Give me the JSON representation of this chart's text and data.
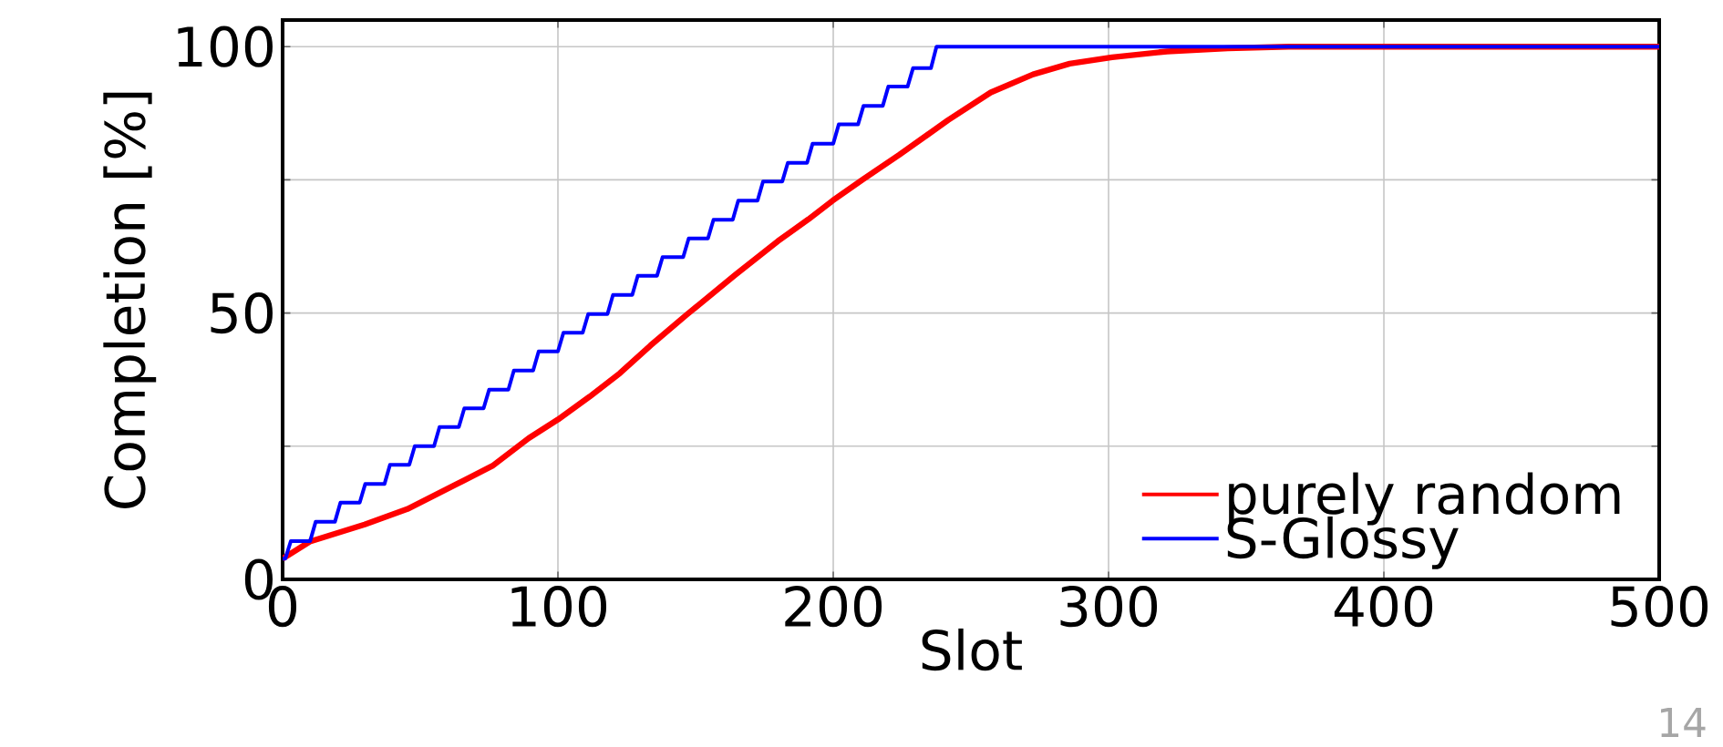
{
  "chart_data": {
    "type": "line",
    "xlabel": "Slot",
    "ylabel": "Completion [%]",
    "xlim": [
      0,
      500
    ],
    "ylim": [
      0,
      105
    ],
    "xticks": [
      0,
      100,
      200,
      300,
      400,
      500
    ],
    "yticks": [
      0,
      {
        "value": 25,
        "label": null
      },
      50,
      {
        "value": 75,
        "label": null
      },
      100
    ],
    "grid": true,
    "legend": "bottom right",
    "marker": "none",
    "line_style": "solid",
    "annotations": [
      "14"
    ],
    "series": [
      {
        "name": "purely random",
        "color": "#ff0000",
        "x": [
          0,
          9.9,
          29.8,
          45.3,
          62.9,
          76.2,
          89.4,
          100,
          111.5,
          122.5,
          133.6,
          146.8,
          164.5,
          179.9,
          191,
          199.8,
          210.8,
          224,
          241.7,
          257.2,
          272.6,
          285.9,
          301.3,
          321.2,
          343.3,
          365.4,
          500
        ],
        "values": [
          3.9,
          7.1,
          10.3,
          13.2,
          17.8,
          21.3,
          26.5,
          30,
          34.3,
          38.7,
          43.9,
          49.7,
          57.2,
          63.5,
          67.6,
          71.1,
          75.1,
          79.7,
          86.2,
          91.4,
          94.8,
          96.8,
          98,
          99.1,
          99.7,
          100,
          100
        ]
      },
      {
        "name": "S-Glossy",
        "color": "#0000ff",
        "x": [
          0,
          1,
          3,
          10,
          12,
          19,
          21,
          28,
          30,
          37,
          39,
          46,
          48,
          55,
          57,
          64,
          66,
          73,
          75,
          82,
          84,
          91,
          93,
          100,
          102,
          109,
          111,
          118,
          120,
          127,
          129,
          136,
          138,
          145.5,
          147.5,
          154.5,
          156.5,
          163.5,
          165.5,
          172.5,
          174.5,
          181.5,
          183.5,
          190.5,
          192.5,
          200,
          202,
          209,
          211,
          218,
          220,
          227,
          229,
          235.5,
          237.5,
          500
        ],
        "values": [
          3.9,
          3.9,
          7.2,
          7.2,
          10.8,
          10.8,
          14.4,
          14.4,
          17.9,
          17.9,
          21.5,
          21.5,
          25,
          25,
          28.6,
          28.6,
          32.1,
          32.1,
          35.6,
          35.6,
          39.2,
          39.2,
          42.8,
          42.8,
          46.3,
          46.3,
          49.8,
          49.8,
          53.4,
          53.4,
          57,
          57,
          60.5,
          60.5,
          64,
          64,
          67.5,
          67.5,
          71.1,
          71.1,
          74.7,
          74.7,
          78.2,
          78.2,
          81.8,
          81.8,
          85.4,
          85.4,
          88.9,
          88.9,
          92.5,
          92.5,
          96,
          96,
          100,
          100
        ]
      }
    ]
  }
}
